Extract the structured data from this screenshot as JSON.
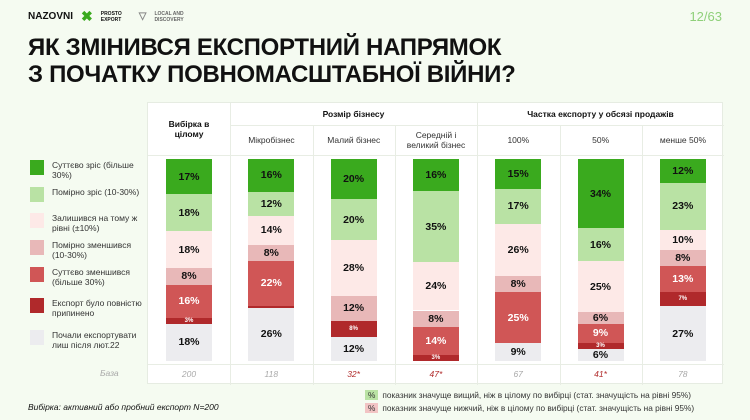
{
  "header": {
    "logos": [
      "NAZOVNI",
      "PROSTO EXPORT",
      "LOCAL AND DISCOVERY"
    ],
    "page": "12/63",
    "title_line1": "ЯК ЗМІНИВСЯ ЕКСПОРТНИЙ НАПРЯМОК",
    "title_line2": "З ПОЧАТКУ ПОВНОМАСШТАБНОЇ ВІЙНИ?"
  },
  "colors": {
    "s_grow": "#3aaa1e",
    "m_grow": "#b9e2a4",
    "same": "#fde9e7",
    "m_dec": "#e8b8b8",
    "s_dec": "#d05656",
    "stopped": "#b0292b",
    "new": "#ececef"
  },
  "chart_data": {
    "type": "bar",
    "stacked": true,
    "orientation": "vertical",
    "unit": "%",
    "legend": [
      "Суттєво зріс (більше 30%)",
      "Помірно зріс (10-30%)",
      "Залишився на тому ж рівні (±10%)",
      "Помірно зменшився (10-30%)",
      "Суттєво зменшився (більше 30%)",
      "Експорт було повністю припинено",
      "Почали експортувати лиш після лют.22"
    ],
    "groups": [
      {
        "label": "Розмір бізнесу"
      },
      {
        "label": "Частка експорту у обсязі продажів"
      }
    ],
    "categories": [
      "Вибірка в цілому",
      "Мікробізнес",
      "Малий бізнес",
      "Середній і великий бізнес",
      "100%",
      "50%",
      "менше 50%"
    ],
    "series": [
      {
        "name": "Суттєво зріс (більше 30%)",
        "values": [
          17,
          16,
          20,
          16,
          15,
          34,
          12
        ]
      },
      {
        "name": "Помірно зріс (10-30%)",
        "values": [
          18,
          12,
          20,
          35,
          17,
          16,
          23
        ]
      },
      {
        "name": "Залишився на тому ж рівні (±10%)",
        "values": [
          18,
          14,
          28,
          24,
          26,
          25,
          10
        ]
      },
      {
        "name": "Помірно зменшився (10-30%)",
        "values": [
          8,
          8,
          12,
          8,
          8,
          6,
          8
        ]
      },
      {
        "name": "Суттєво зменшився (більше 30%)",
        "values": [
          16,
          22,
          0,
          14,
          25,
          9,
          13
        ]
      },
      {
        "name": "Експорт було повністю припинено",
        "values": [
          3,
          1,
          8,
          3,
          0,
          3,
          7
        ]
      },
      {
        "name": "Почали експортувати лиш після лют.22",
        "values": [
          18,
          26,
          12,
          0,
          9,
          6,
          27
        ]
      }
    ],
    "base_label": "База",
    "base": [
      "200",
      "118",
      "32*",
      "47*",
      "67",
      "41*",
      "78"
    ]
  },
  "footer": {
    "sample": "Вибірка: активний або пробний експорт N=200",
    "sig_mark": "%",
    "sig_high": "показник значуще вищий, ніж в цілому по вибірці (стат. значущість на рівні 95%)",
    "sig_low": "показник значуще нижчий, ніж в цілому по вибірці (стат. значущість на рівні 95%)"
  }
}
